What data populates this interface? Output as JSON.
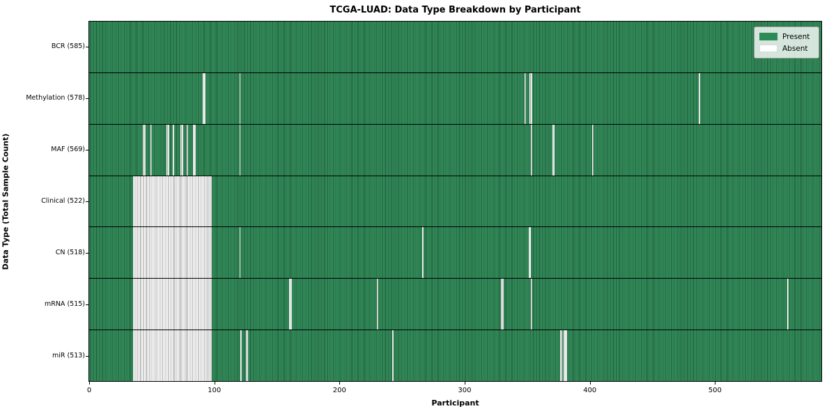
{
  "title": "TCGA-LUAD: Data Type Breakdown by Participant",
  "axes": {
    "xlabel": "Participant",
    "ylabel": "Data Type (Total Sample Count)"
  },
  "legend": {
    "items": [
      {
        "label": "Present",
        "color": "#2e8b57"
      },
      {
        "label": "Absent",
        "color": "#ffffff"
      }
    ]
  },
  "colors": {
    "present_fill": "#35905d",
    "present_edge": "#1d5838",
    "absent_fill": "#ffffff",
    "absent_edge": "#9a9a9a"
  },
  "chart_data": {
    "type": "heatmap",
    "title": "TCGA-LUAD: Data Type Breakdown by Participant",
    "xlabel": "Participant",
    "ylabel": "Data Type (Total Sample Count)",
    "x_ticks": [
      0,
      100,
      200,
      300,
      400,
      500
    ],
    "x_range": [
      0,
      585
    ],
    "total_participants": 585,
    "legend_entries": [
      "Present",
      "Absent"
    ],
    "rows": [
      {
        "label": "BCR (585)",
        "data_type": "BCR",
        "present_count": 585,
        "absent_ranges": []
      },
      {
        "label": "Methylation (578)",
        "data_type": "Methylation",
        "present_count": 578,
        "absent_ranges": [
          [
            91,
            92
          ],
          [
            120,
            120
          ],
          [
            348,
            348
          ],
          [
            352,
            353
          ],
          [
            487,
            487
          ]
        ]
      },
      {
        "label": "MAF (569)",
        "data_type": "MAF",
        "present_count": 569,
        "absent_ranges": [
          [
            43,
            44
          ],
          [
            49,
            49
          ],
          [
            62,
            63
          ],
          [
            67,
            67
          ],
          [
            73,
            74
          ],
          [
            78,
            78
          ],
          [
            83,
            84
          ],
          [
            120,
            120
          ],
          [
            353,
            353
          ],
          [
            370,
            371
          ],
          [
            402,
            402
          ]
        ]
      },
      {
        "label": "Clinical (522)",
        "data_type": "Clinical",
        "present_count": 522,
        "absent_ranges": [
          [
            35,
            97
          ]
        ]
      },
      {
        "label": "CN (518)",
        "data_type": "CN",
        "present_count": 518,
        "absent_ranges": [
          [
            35,
            97
          ],
          [
            120,
            120
          ],
          [
            266,
            266
          ],
          [
            351,
            352
          ]
        ]
      },
      {
        "label": "mRNA (515)",
        "data_type": "mRNA",
        "present_count": 515,
        "absent_ranges": [
          [
            35,
            97
          ],
          [
            160,
            161
          ],
          [
            230,
            230
          ],
          [
            329,
            330
          ],
          [
            353,
            353
          ],
          [
            558,
            558
          ]
        ]
      },
      {
        "label": "miR (513)",
        "data_type": "miR",
        "present_count": 513,
        "absent_ranges": [
          [
            35,
            97
          ],
          [
            121,
            121
          ],
          [
            125,
            126
          ],
          [
            242,
            242
          ],
          [
            376,
            377
          ],
          [
            379,
            381
          ]
        ]
      }
    ]
  }
}
